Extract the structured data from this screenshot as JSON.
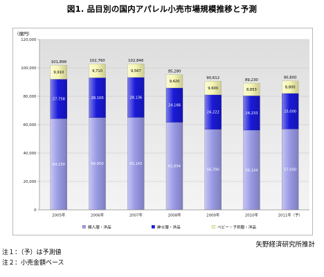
{
  "chart_data": {
    "type": "bar",
    "stacked": true,
    "title": "図1. 品目別の国内アパレル小売市場規模推移と予測",
    "ylabel": "（億円）",
    "ylim": [
      0,
      120000
    ],
    "yticks": [
      0,
      20000,
      40000,
      60000,
      80000,
      100000,
      120000
    ],
    "ytick_labels": [
      "0",
      "20,000",
      "40,000",
      "60,000",
      "80,000",
      "100,000",
      "120,000"
    ],
    "grid": true,
    "legend": "bottom",
    "categories": [
      "2005年",
      "2006年",
      "2007年",
      "2008年",
      "2009年",
      "2010年",
      "2011年（予）"
    ],
    "series": [
      {
        "name": "婦人服・洋品",
        "color": "#9a9ae6",
        "label_color": "#ffffff",
        "values": [
          64230,
          64950,
          65143,
          61694,
          56790,
          56144,
          57000
        ],
        "labels": [
          "64,230",
          "64,950",
          "65,143",
          "61,694",
          "56,790",
          "56,144",
          "57,000"
        ]
      },
      {
        "name": "紳士服・洋品",
        "color": "#1a1ad8",
        "label_color": "#ffffff",
        "values": [
          27758,
          28100,
          28136,
          24166,
          24222,
          24233,
          25000
        ],
        "labels": [
          "27,758",
          "28,100",
          "28,136",
          "24,166",
          "24,222",
          "24,233",
          "25,000"
        ]
      },
      {
        "name": "ベビー・子供服・洋品",
        "color": "#f6f6b4",
        "label_color": "#000000",
        "values": [
          9910,
          9710,
          9567,
          9420,
          9600,
          8853,
          8800
        ],
        "labels": [
          "9,910",
          "9,710",
          "9,567",
          "9,420",
          "9,600",
          "8,853",
          "8,800"
        ]
      }
    ],
    "totals": [
      101898,
      102760,
      102846,
      95280,
      90612,
      89230,
      90800
    ],
    "total_labels": [
      "101,898",
      "102,760",
      "102,846",
      "95,280",
      "90,612",
      "89,230",
      "90,800"
    ]
  },
  "source": "矢野経済研究所推計",
  "notes": [
    "注１：（予）は予測値",
    "注２：小売金額ベース"
  ]
}
